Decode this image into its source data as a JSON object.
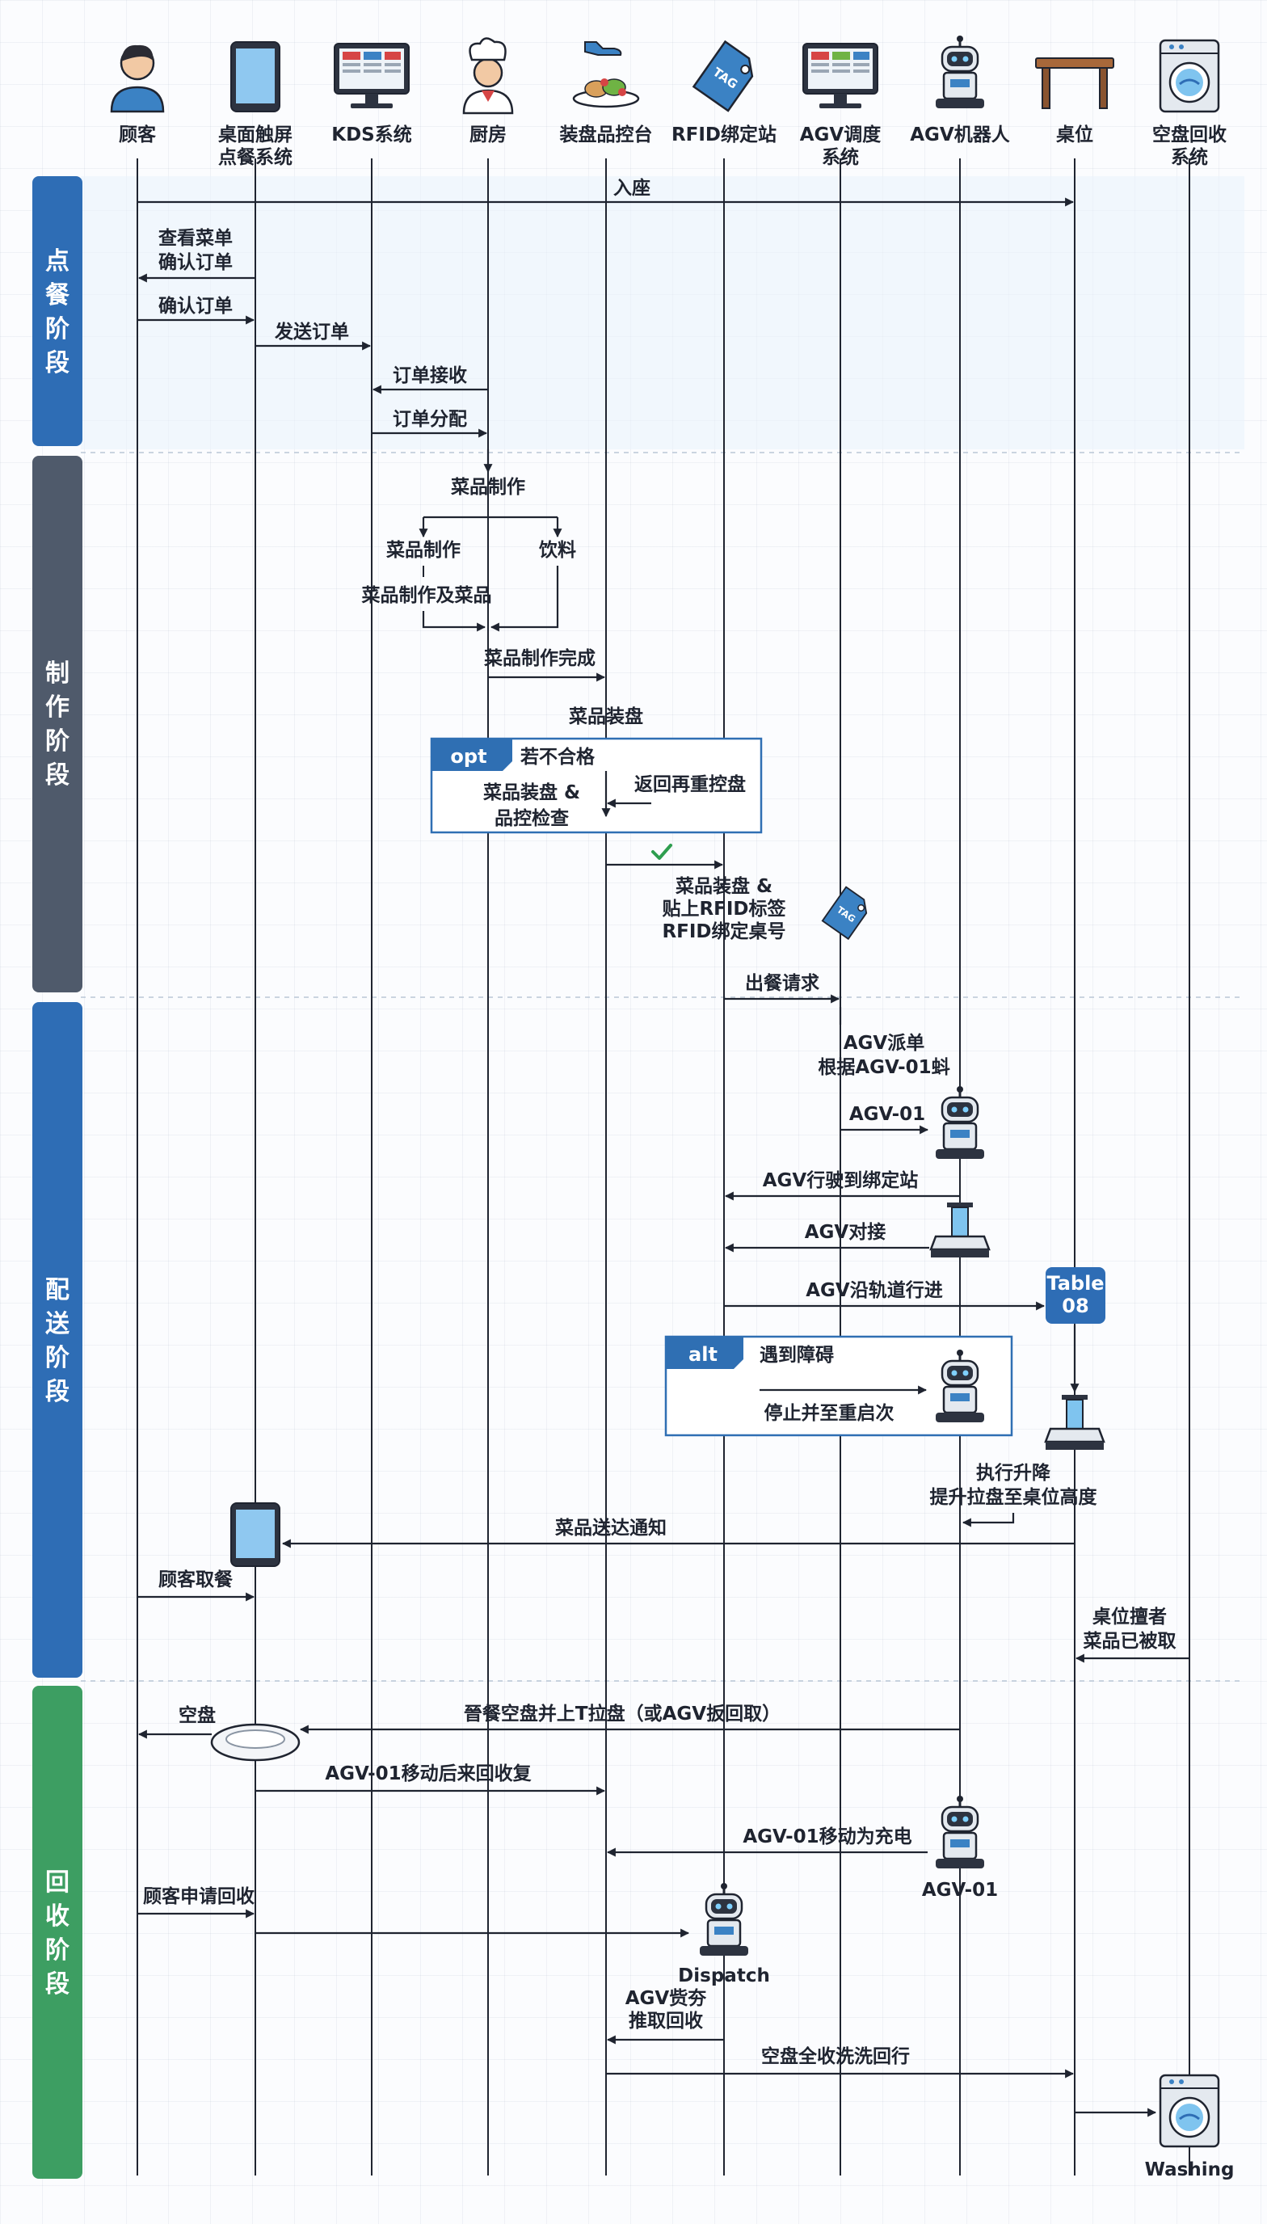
{
  "actors": [
    {
      "id": "customer",
      "label": [
        "顾客"
      ],
      "icon": "person-icon"
    },
    {
      "id": "tablet",
      "label": [
        "桌面触屏",
        "点餐系统"
      ],
      "icon": "tablet-icon"
    },
    {
      "id": "kds",
      "label": [
        "KDS系统"
      ],
      "icon": "monitor-icon"
    },
    {
      "id": "kitchen",
      "label": [
        "厨房"
      ],
      "icon": "chef-icon"
    },
    {
      "id": "plating",
      "label": [
        "装盘品控台"
      ],
      "icon": "plated-dish-icon"
    },
    {
      "id": "rfid",
      "label": [
        "RFID绑定站"
      ],
      "icon": "rfid-tag-icon"
    },
    {
      "id": "dispatch",
      "label": [
        "AGV调度",
        "系统"
      ],
      "icon": "monitor-icon"
    },
    {
      "id": "agv",
      "label": [
        "AGV机器人"
      ],
      "icon": "robot-icon"
    },
    {
      "id": "table",
      "label": [
        "桌位"
      ],
      "icon": "table-icon"
    },
    {
      "id": "recycle",
      "label": [
        "空盘回收",
        "系统"
      ],
      "icon": "washing-machine-icon"
    }
  ],
  "phases": [
    {
      "name": "ordering",
      "label": "点餐阶段",
      "color": "#2e6db5"
    },
    {
      "name": "production",
      "label": "制作阶段",
      "color": "#4f5a6b"
    },
    {
      "name": "delivery",
      "label": "配送阶段",
      "color": "#2e6db5"
    },
    {
      "name": "recycling",
      "label": "回收阶段",
      "color": "#3d9e62"
    }
  ],
  "messages": {
    "seat": "入座",
    "view_menu": [
      "查看菜单",
      "确认订单"
    ],
    "confirm_order": "确认订单",
    "send_order": "发送订单",
    "order_received": "订单接收",
    "order_assign": "订单分配",
    "dish_making": "菜品制作",
    "dish_making_sub": "菜品制作",
    "drinks": "饮料",
    "dish_and_food": "菜品制作及菜品",
    "dish_done": "菜品制作完成",
    "dish_plating": "菜品装盘",
    "plating_qc": [
      "菜品装盘 &",
      "品控检查"
    ],
    "return_replate": "返回再重控盘",
    "rfid_bind": [
      "菜品装盘 &",
      "贴上RFID标签",
      "RFID绑定桌号"
    ],
    "serve_request": "出餐请求",
    "agv_dispatch": [
      "AGV派单",
      "根据AGV-01蚪"
    ],
    "agv01": "AGV-01",
    "agv_to_station": "AGV行驶到绑定站",
    "agv_dock": "AGV对接",
    "agv_along_track": "AGV沿轨道行进",
    "table_badge": [
      "Table",
      "08"
    ],
    "lift": [
      "执行升降",
      "提升拉盘至桌位高度"
    ],
    "delivered_notice": "菜品送达通知",
    "customer_pickup": "顾客取餐",
    "table_sense": [
      "桌位擅者",
      "菜品已被取"
    ],
    "empty_plate": "空盘",
    "return_plate": "晉餐空盘并上T拉盘（或AGV扳回取）",
    "agv01_return": "AGV-01移动后来回收复",
    "agv01_charge": "AGV-01移动为充电",
    "agv01_label": "AGV-01",
    "customer_recycle": "顾客申请回收",
    "dispatch_label": "Dispatch",
    "agv_pickup": [
      "AGV赀夯",
      "推取回收"
    ],
    "plate_wash_return": "空盘全收洗洗回行",
    "washing_label": "Washing"
  },
  "frames": {
    "opt": {
      "tag": "opt",
      "condition": "若不合格"
    },
    "alt": {
      "tag": "alt",
      "condition": "遇到障碍",
      "action": "停止并至重启次"
    }
  },
  "colors": {
    "line": "#1f2430",
    "frame_blue": "#2f6fb3",
    "check": "#2e9e4f"
  }
}
